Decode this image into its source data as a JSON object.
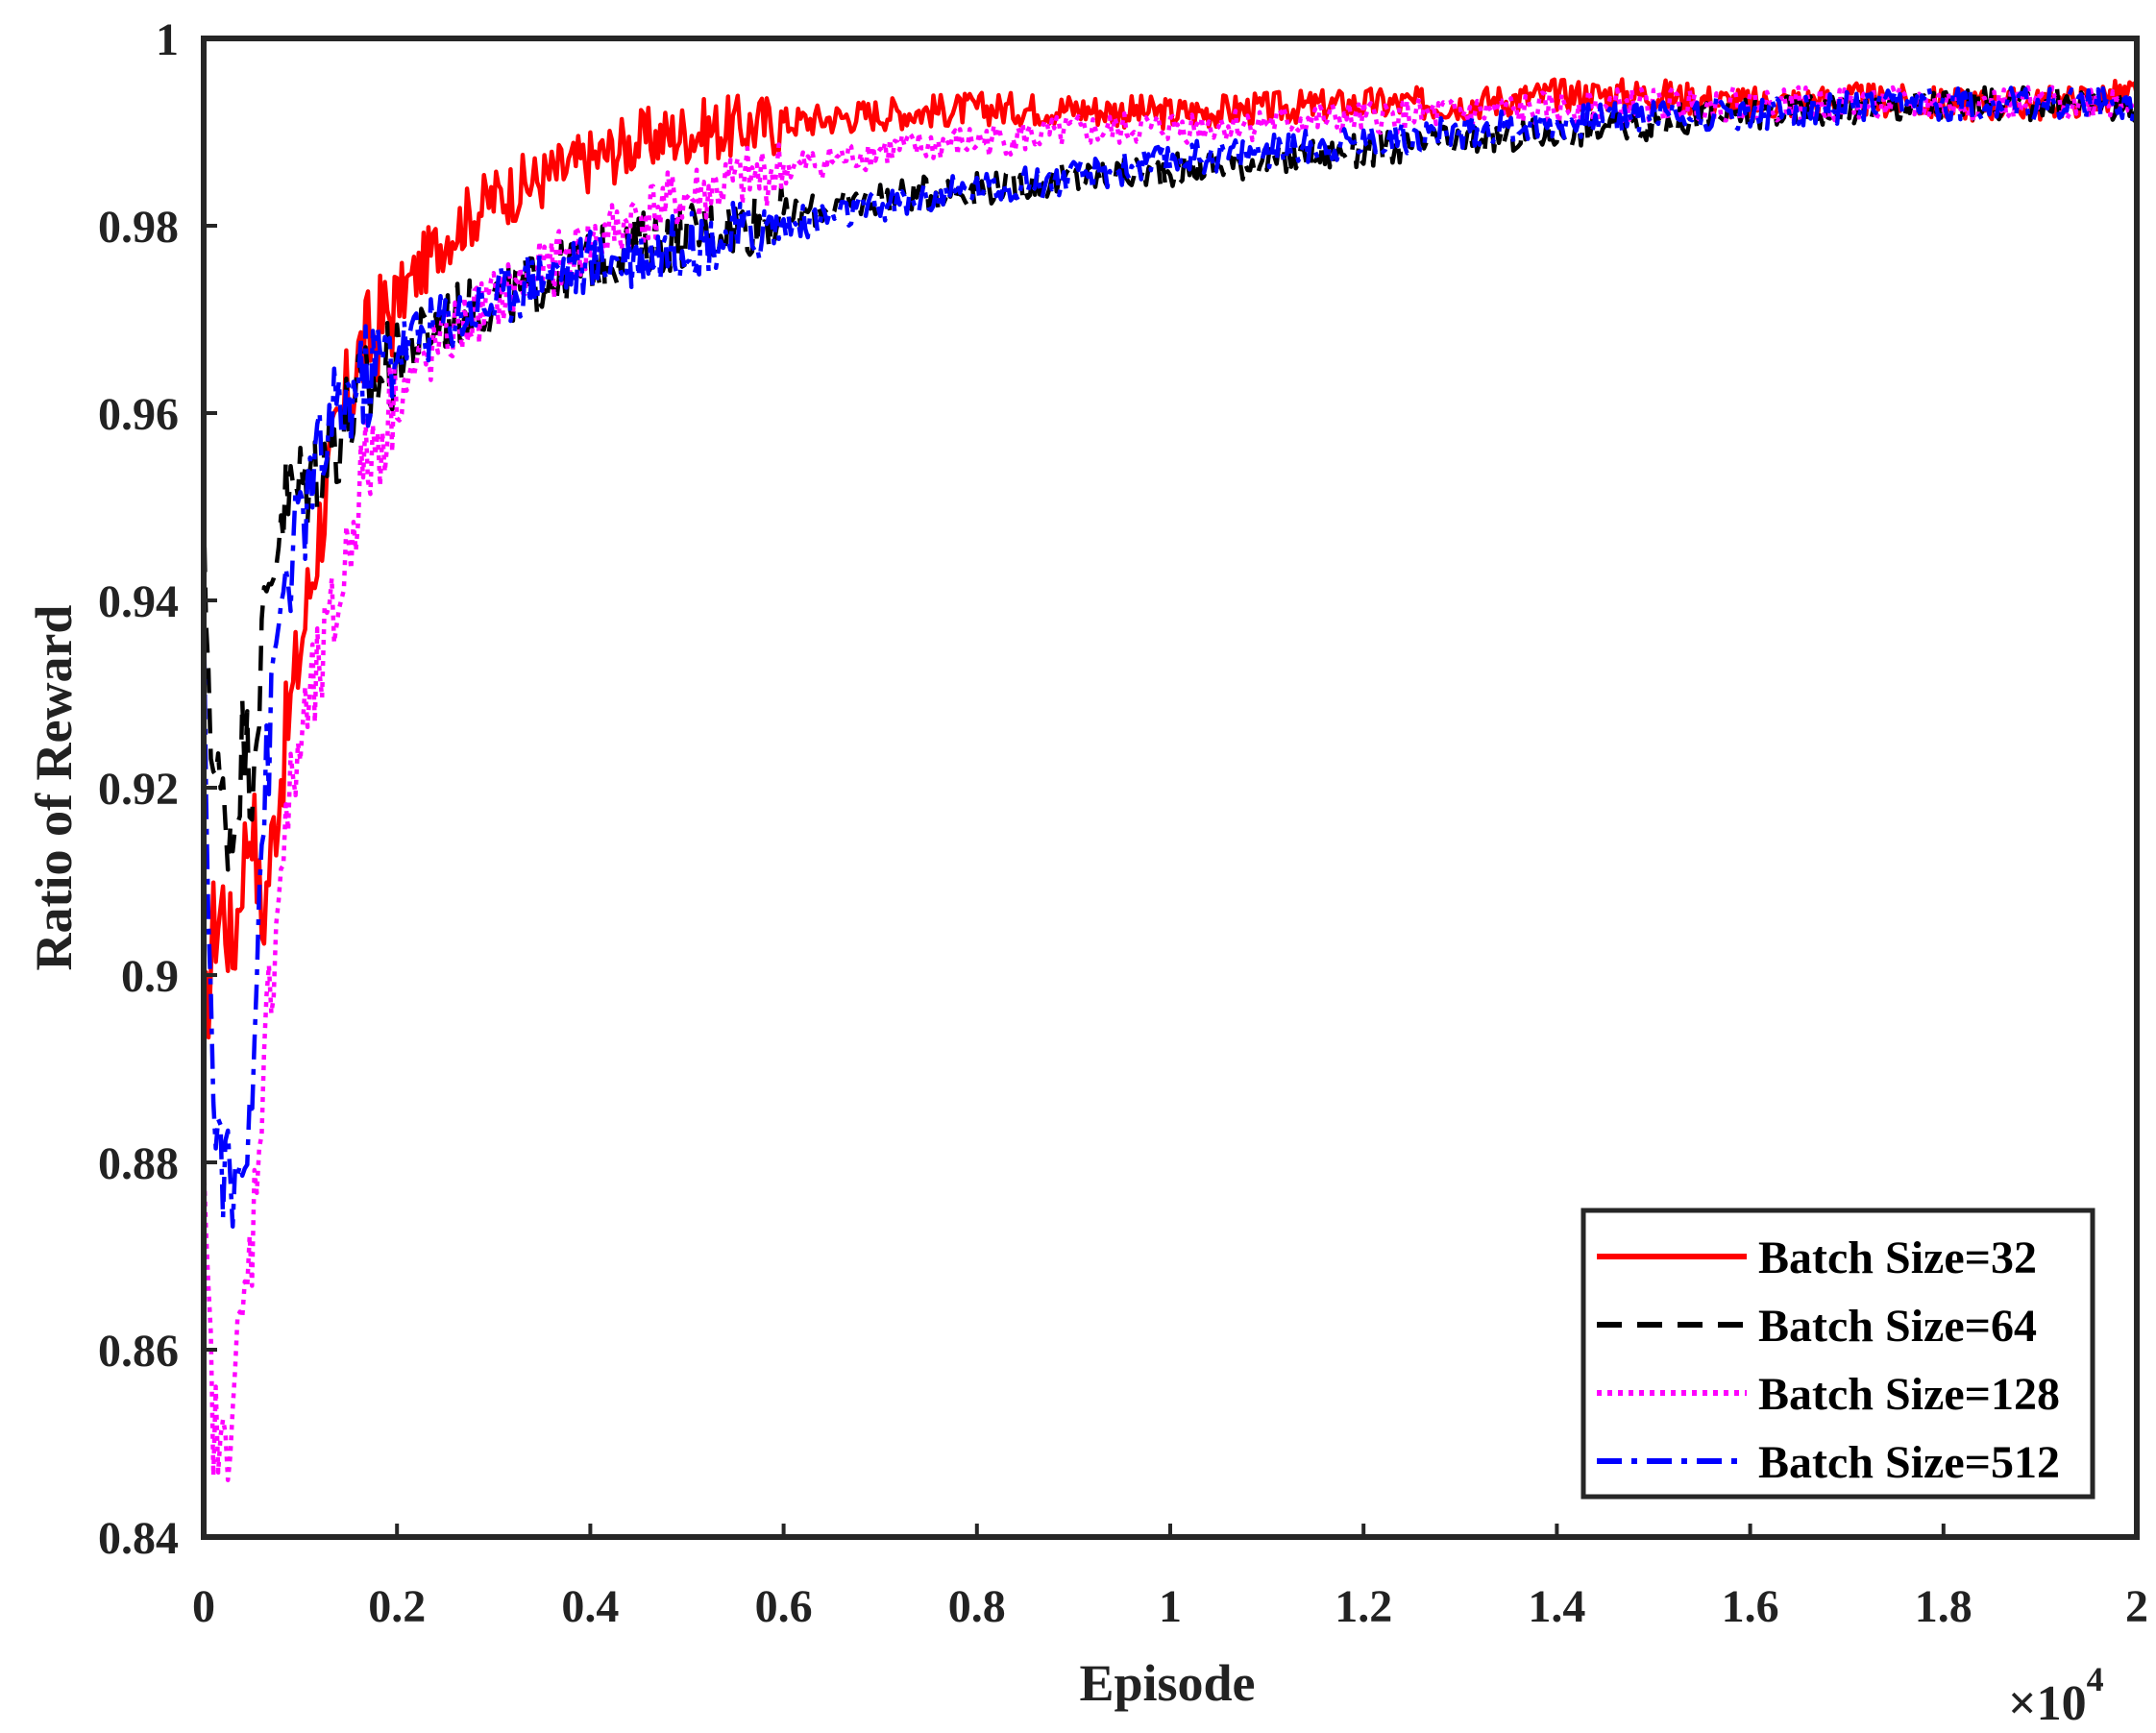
{
  "chart_data": {
    "type": "line",
    "xlabel": "Episode",
    "ylabel": "Ratio of Reward",
    "x_exponent_label": "×10",
    "x_exponent_power": "4",
    "xlim": [
      0,
      20000
    ],
    "ylim": [
      0.84,
      1.0
    ],
    "x_tick_values": [
      0,
      2000,
      4000,
      6000,
      8000,
      10000,
      12000,
      14000,
      16000,
      18000,
      20000
    ],
    "x_tick_labels": [
      "0",
      "0.2",
      "0.4",
      "0.6",
      "0.8",
      "1",
      "1.2",
      "1.4",
      "1.6",
      "1.8",
      "2"
    ],
    "y_tick_values": [
      0.84,
      0.86,
      0.88,
      0.9,
      0.92,
      0.94,
      0.96,
      0.98,
      1.0
    ],
    "y_tick_labels": [
      "0.84",
      "0.86",
      "0.88",
      "0.9",
      "0.92",
      "0.94",
      "0.96",
      "0.98",
      "1"
    ],
    "grid": false,
    "legend_position": "bottom-right",
    "series": [
      {
        "name": "Batch Size=32",
        "color": "#ff0000",
        "style": "solid",
        "x": [
          0,
          100,
          200,
          300,
          400,
          500,
          600,
          800,
          1000,
          1200,
          1400,
          1600,
          2000,
          2500,
          3000,
          3500,
          4000,
          4500,
          5000,
          6000,
          7000,
          8000,
          9000,
          10000,
          11000,
          12000,
          13000,
          14000,
          15000,
          16000,
          17000,
          18000,
          19000,
          20000
        ],
        "y": [
          0.892,
          0.905,
          0.908,
          0.902,
          0.912,
          0.918,
          0.905,
          0.922,
          0.935,
          0.948,
          0.958,
          0.966,
          0.972,
          0.979,
          0.983,
          0.985,
          0.987,
          0.989,
          0.99,
          0.991,
          0.992,
          0.9925,
          0.9925,
          0.992,
          0.9925,
          0.993,
          0.993,
          0.994,
          0.994,
          0.993,
          0.9935,
          0.993,
          0.993,
          0.994
        ]
      },
      {
        "name": "Batch Size=64",
        "color": "#000000",
        "style": "dashed",
        "x": [
          0,
          100,
          200,
          300,
          400,
          500,
          600,
          800,
          1000,
          1200,
          1400,
          1600,
          2000,
          2500,
          3000,
          3500,
          4000,
          4500,
          5000,
          6000,
          7000,
          8000,
          9000,
          10000,
          11000,
          12000,
          13000,
          14000,
          15000,
          16000,
          17000,
          18000,
          19000,
          20000
        ],
        "y": [
          0.945,
          0.922,
          0.918,
          0.915,
          0.925,
          0.922,
          0.935,
          0.95,
          0.952,
          0.955,
          0.958,
          0.961,
          0.966,
          0.97,
          0.972,
          0.974,
          0.976,
          0.978,
          0.979,
          0.981,
          0.983,
          0.984,
          0.985,
          0.986,
          0.987,
          0.988,
          0.989,
          0.99,
          0.991,
          0.992,
          0.9925,
          0.993,
          0.993,
          0.993
        ]
      },
      {
        "name": "Batch Size=128",
        "color": "#ff00ff",
        "style": "dotted",
        "x": [
          0,
          100,
          200,
          300,
          400,
          500,
          600,
          800,
          1000,
          1200,
          1400,
          1600,
          2000,
          2500,
          3000,
          3500,
          4000,
          4500,
          5000,
          6000,
          7000,
          8000,
          9000,
          10000,
          11000,
          12000,
          13000,
          14000,
          15000,
          16000,
          17000,
          18000,
          19000,
          20000
        ],
        "y": [
          0.875,
          0.852,
          0.848,
          0.856,
          0.862,
          0.872,
          0.888,
          0.912,
          0.925,
          0.932,
          0.94,
          0.952,
          0.962,
          0.968,
          0.972,
          0.975,
          0.978,
          0.981,
          0.983,
          0.986,
          0.988,
          0.989,
          0.99,
          0.9905,
          0.991,
          0.9915,
          0.992,
          0.9925,
          0.993,
          0.993,
          0.993,
          0.993,
          0.993,
          0.9935
        ]
      },
      {
        "name": "Batch Size=512",
        "color": "#0000ff",
        "style": "dashdot",
        "x": [
          0,
          100,
          200,
          300,
          400,
          500,
          600,
          800,
          1000,
          1200,
          1400,
          1600,
          2000,
          2500,
          3000,
          3500,
          4000,
          4500,
          5000,
          6000,
          7000,
          8000,
          9000,
          10000,
          11000,
          12000,
          13000,
          14000,
          15000,
          16000,
          17000,
          18000,
          19000,
          20000
        ],
        "y": [
          0.935,
          0.885,
          0.88,
          0.876,
          0.88,
          0.89,
          0.915,
          0.94,
          0.948,
          0.955,
          0.96,
          0.963,
          0.967,
          0.97,
          0.972,
          0.975,
          0.976,
          0.977,
          0.978,
          0.98,
          0.982,
          0.984,
          0.985,
          0.987,
          0.988,
          0.989,
          0.99,
          0.991,
          0.992,
          0.992,
          0.9925,
          0.993,
          0.993,
          0.993
        ]
      }
    ]
  }
}
